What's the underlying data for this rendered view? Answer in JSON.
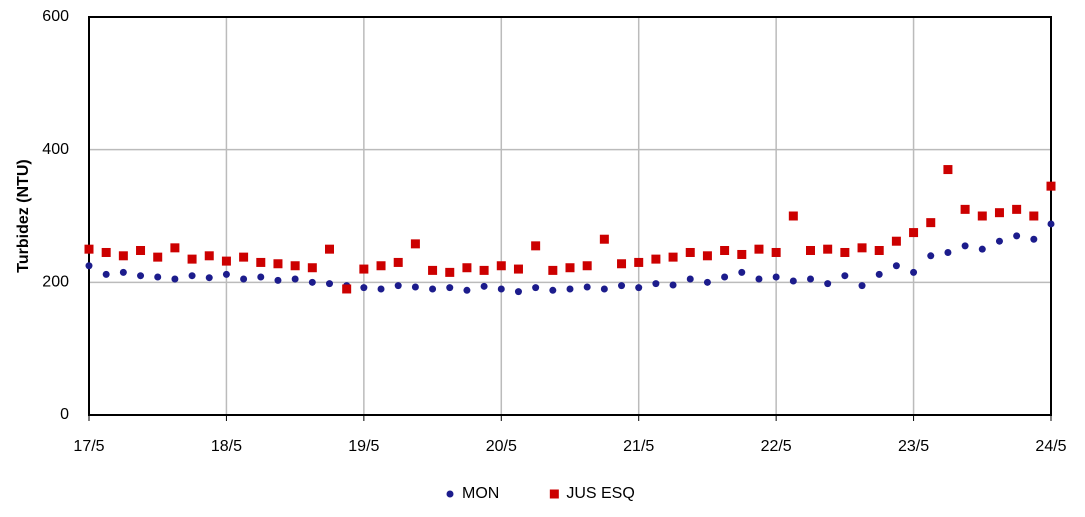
{
  "chart_data": {
    "type": "scatter",
    "y_label": "Turbidez (NTU)",
    "x": [
      17,
      17.125,
      17.25,
      17.375,
      17.5,
      17.625,
      17.75,
      17.875,
      18,
      18.125,
      18.25,
      18.375,
      18.5,
      18.625,
      18.75,
      18.875,
      19,
      19.125,
      19.25,
      19.375,
      19.5,
      19.625,
      19.75,
      19.875,
      20,
      20.125,
      20.25,
      20.375,
      20.5,
      20.625,
      20.75,
      20.875,
      21,
      21.125,
      21.25,
      21.375,
      21.5,
      21.625,
      21.75,
      21.875,
      22,
      22.125,
      22.25,
      22.375,
      22.5,
      22.625,
      22.75,
      22.875,
      23,
      23.125,
      23.25,
      23.375,
      23.5,
      23.625,
      23.75,
      23.875,
      24
    ],
    "series": [
      {
        "name": "MON",
        "color": "#1c1c8c",
        "marker": "circle",
        "values": [
          225,
          212,
          215,
          210,
          208,
          205,
          210,
          207,
          212,
          205,
          208,
          203,
          205,
          200,
          198,
          195,
          192,
          190,
          195,
          193,
          190,
          192,
          188,
          194,
          190,
          186,
          192,
          188,
          190,
          193,
          190,
          195,
          192,
          198,
          196,
          205,
          200,
          208,
          215,
          205,
          208,
          202,
          205,
          198,
          210,
          195,
          212,
          225,
          215,
          240,
          245,
          255,
          250,
          262,
          270,
          265,
          288
        ]
      },
      {
        "name": "JUS ESQ",
        "color": "#cc0000",
        "marker": "square",
        "values": [
          250,
          245,
          240,
          248,
          238,
          252,
          235,
          240,
          232,
          238,
          230,
          228,
          225,
          222,
          250,
          190,
          220,
          225,
          230,
          258,
          218,
          215,
          222,
          218,
          225,
          220,
          255,
          218,
          222,
          225,
          265,
          228,
          230,
          235,
          238,
          245,
          240,
          248,
          242,
          250,
          245,
          300,
          248,
          250,
          245,
          252,
          248,
          262,
          275,
          290,
          370,
          310,
          300,
          305,
          310,
          300,
          345
        ]
      }
    ],
    "xlim": [
      17,
      24
    ],
    "xticks": [
      {
        "value": 17,
        "label": "17/5"
      },
      {
        "value": 18,
        "label": "18/5"
      },
      {
        "value": 19,
        "label": "19/5"
      },
      {
        "value": 20,
        "label": "20/5"
      },
      {
        "value": 21,
        "label": "21/5"
      },
      {
        "value": 22,
        "label": "22/5"
      },
      {
        "value": 23,
        "label": "23/5"
      },
      {
        "value": 24,
        "label": "24/5"
      }
    ],
    "ylim": [
      0,
      600
    ],
    "yticks": [
      0,
      200,
      400,
      600
    ],
    "grid": true,
    "legend": "bottom"
  }
}
